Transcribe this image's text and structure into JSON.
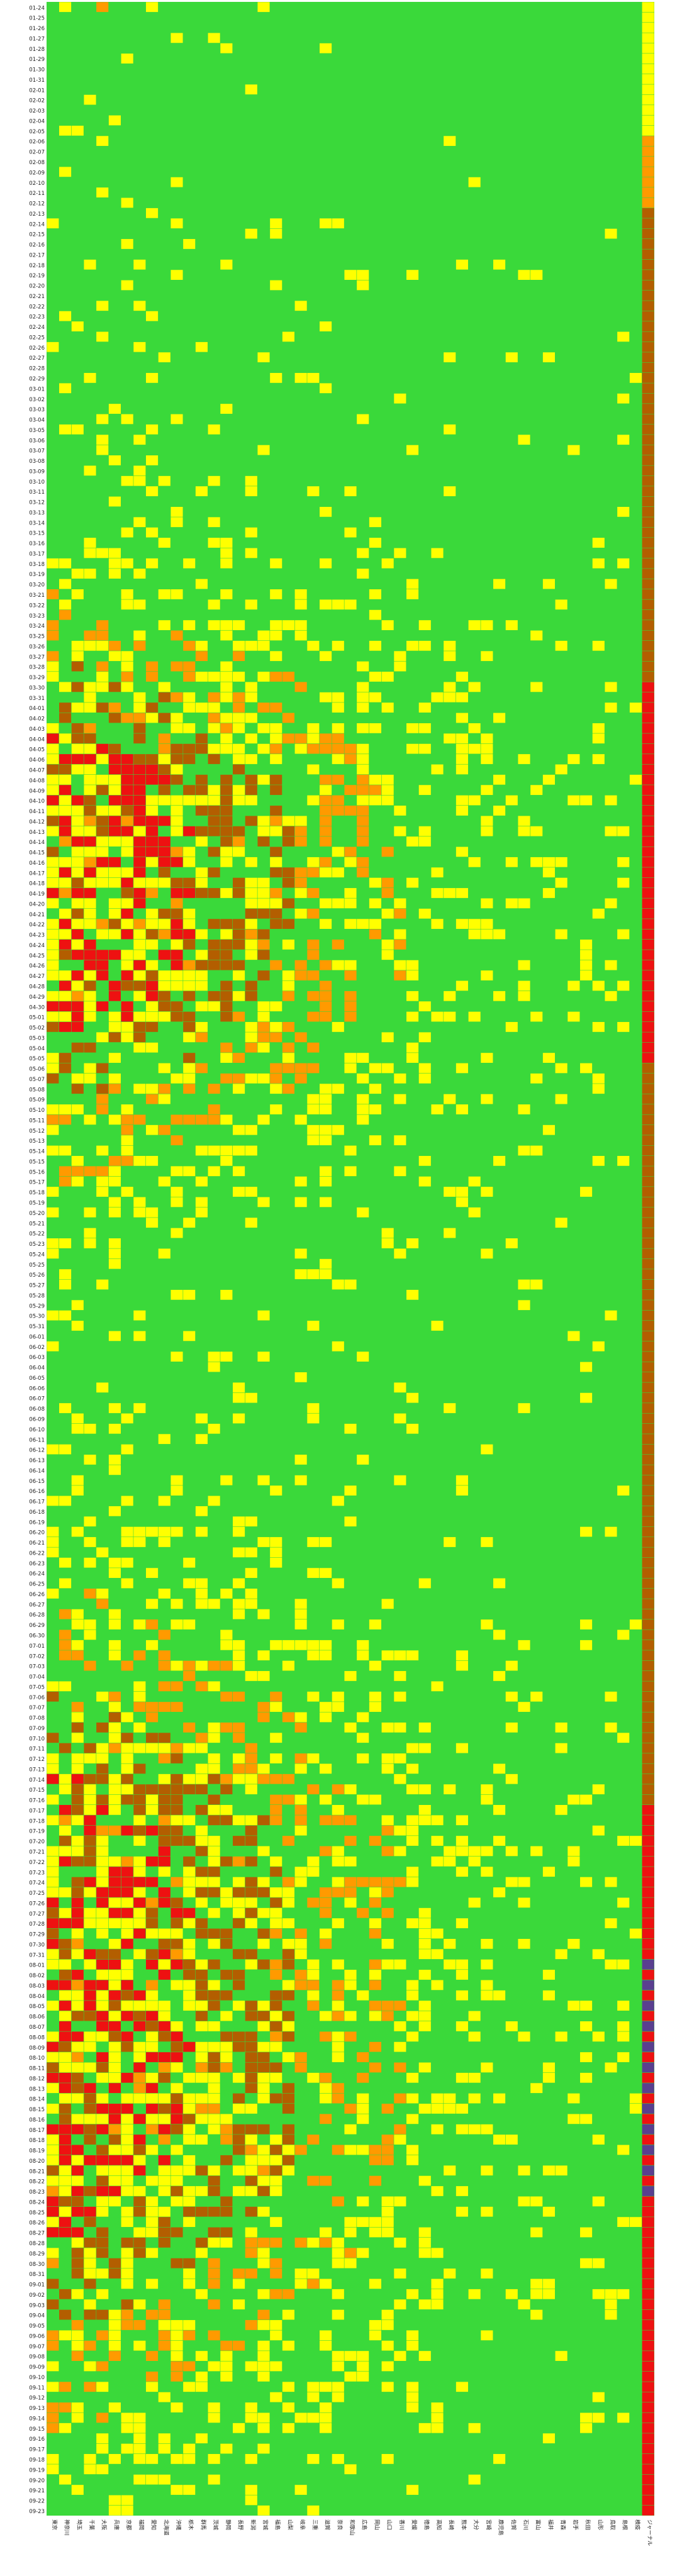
{
  "chart_data": {
    "type": "heatmap",
    "title": "",
    "xlabel": "",
    "ylabel": "",
    "legend": "none",
    "grid": false,
    "level_colors": {
      "0": "#3ad93a",
      "1": "#ffff00",
      "2": "#ff9a00",
      "3": "#b35e00",
      "4": "#ee1111",
      "5": "#5a3f8f"
    },
    "categories": [
      "東京",
      "神奈川",
      "埼玉",
      "千葉",
      "大阪",
      "兵庫",
      "京都",
      "福岡",
      "愛知",
      "北海道",
      "沖縄",
      "栃木",
      "群馬",
      "茨城",
      "静岡",
      "長野",
      "新潟",
      "宮城",
      "福島",
      "山梨",
      "岐阜",
      "三重",
      "滋賀",
      "奈良",
      "和歌山",
      "広島",
      "岡山",
      "山口",
      "香川",
      "愛媛",
      "徳島",
      "高知",
      "長崎",
      "熊本",
      "大分",
      "宮崎",
      "鹿児島",
      "佐賀",
      "石川",
      "富山",
      "福井",
      "青森",
      "岩手",
      "秋田",
      "山形",
      "鳥取",
      "島根",
      "検疫",
      "ジャーナル"
    ],
    "rows": [
      {
        "label": "01-24",
        "values": [
          0,
          1,
          0,
          0,
          2,
          0,
          0,
          0,
          1,
          0,
          0,
          0,
          0,
          0,
          0,
          0,
          0,
          1,
          0,
          0,
          0,
          0,
          0,
          0,
          0,
          0,
          0,
          0,
          0,
          0,
          0,
          0,
          0,
          0,
          0,
          0,
          0,
          0,
          0,
          0,
          0,
          0,
          0,
          0,
          0,
          0,
          0,
          0,
          1
        ]
      },
      {
        "label": "01-25",
        "values": [
          0,
          0,
          0,
          0,
          0,
          0,
          0,
          0,
          0,
          0,
          0,
          0,
          0,
          0,
          0,
          0,
          0,
          0,
          0,
          0,
          0,
          0,
          0,
          0,
          0,
          0,
          0,
          0,
          0,
          0,
          0,
          0,
          0,
          0,
          0,
          0,
          0,
          0,
          0,
          0,
          0,
          0,
          0,
          0,
          0,
          0,
          0,
          0,
          1
        ]
      }
    ]
  }
}
